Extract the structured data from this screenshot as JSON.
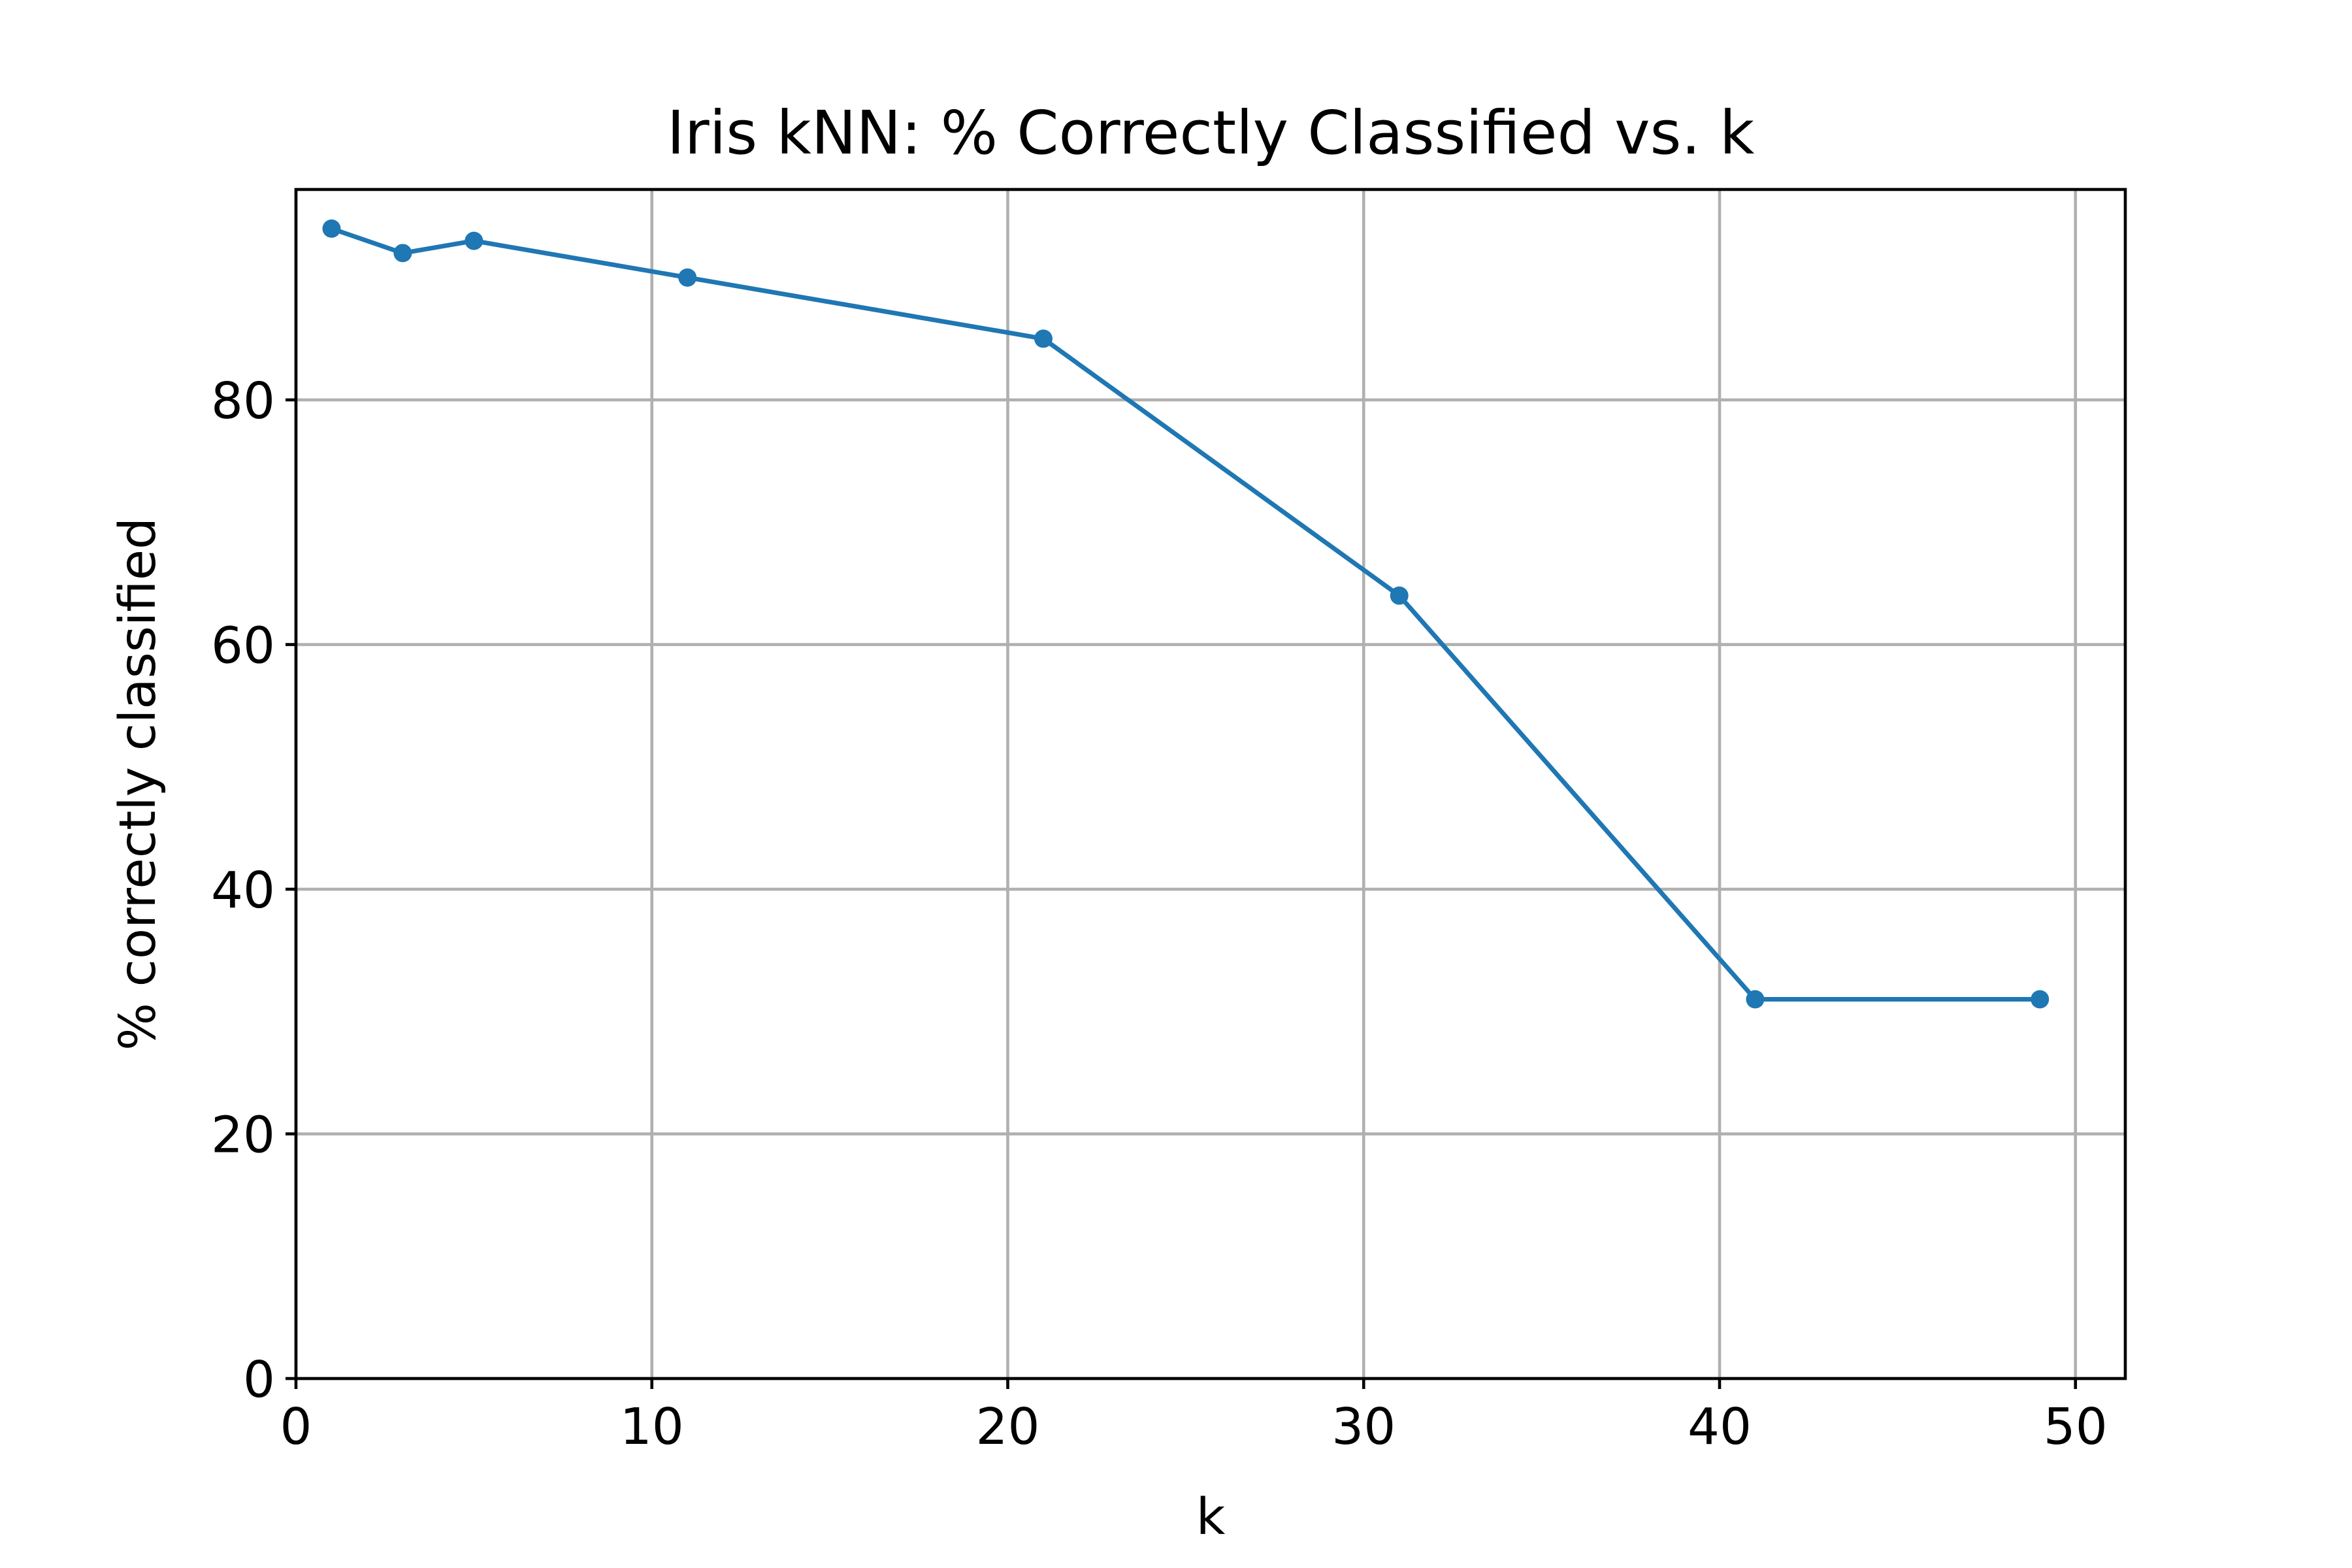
{
  "chart_data": {
    "type": "line",
    "title": "Iris kNN: % Correctly Classified vs. k",
    "xlabel": "k",
    "ylabel": "% correctly classified",
    "xlim": [
      0,
      51.4
    ],
    "ylim": [
      0,
      97.2
    ],
    "xticks": [
      0,
      10,
      20,
      30,
      40,
      50
    ],
    "yticks": [
      0,
      20,
      40,
      60,
      80
    ],
    "grid": true,
    "legend": "none",
    "series": [
      {
        "color": "#1f77b4",
        "marker": "circle",
        "x": [
          1,
          3,
          5,
          11,
          21,
          31,
          41,
          49
        ],
        "y": [
          94,
          92,
          93,
          90,
          85,
          64,
          31,
          31
        ]
      }
    ]
  }
}
